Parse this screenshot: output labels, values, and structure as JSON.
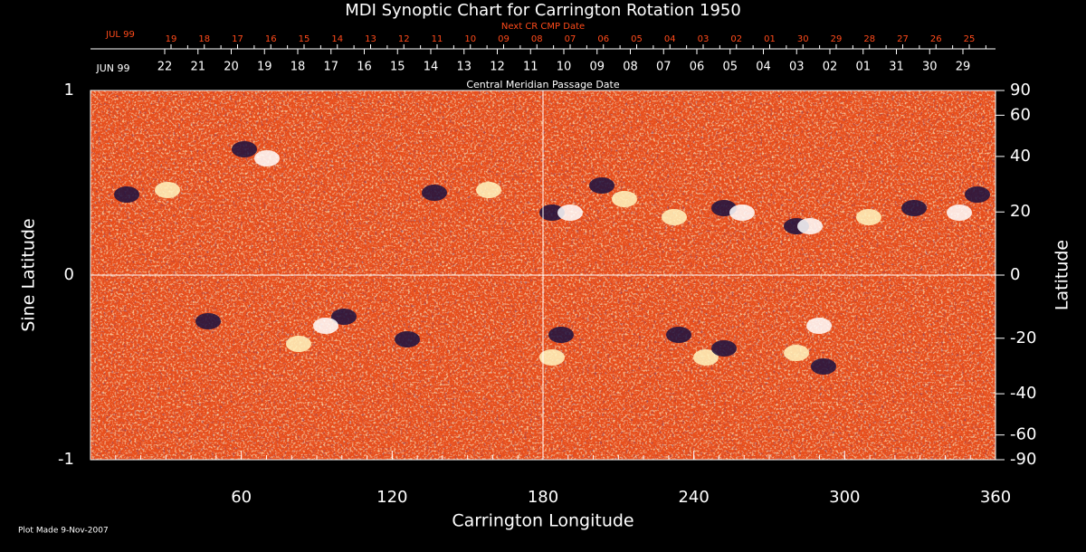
{
  "chart_data": {
    "type": "synoptic-map",
    "title": "MDI Synoptic Chart for Carrington Rotation 1950",
    "x_label": "Carrington Longitude",
    "y_label": "Sine Latitude",
    "y2_label": "Latitude",
    "xlim": [
      0,
      360
    ],
    "xticks": [
      60,
      120,
      180,
      240,
      300,
      360
    ],
    "ylim": [
      -1,
      1
    ],
    "yticks": [
      -1,
      0,
      1
    ],
    "y2lim": [
      -90,
      90
    ],
    "y2scale": "sine",
    "y2ticks": [
      90,
      60,
      40,
      20,
      0,
      -20,
      -40,
      -60,
      -90
    ],
    "top_axis_title": "Next CR CMP Date",
    "top_axis_start": "JUL 99",
    "top_axis_labels": [
      "19",
      "18",
      "17",
      "16",
      "15",
      "14",
      "13",
      "12",
      "11",
      "10",
      "09",
      "08",
      "07",
      "06",
      "05",
      "04",
      "03",
      "02",
      "01",
      "30",
      "29",
      "28",
      "27",
      "26",
      "25"
    ],
    "date_axis_title": "Central Meridian Passage Date",
    "date_axis_start": "JUN 99",
    "date_axis_labels": [
      "22",
      "21",
      "20",
      "19",
      "18",
      "17",
      "16",
      "15",
      "14",
      "13",
      "12",
      "11",
      "10",
      "09",
      "08",
      "07",
      "06",
      "05",
      "04",
      "03",
      "02",
      "01",
      "31",
      "30",
      "29"
    ],
    "footnote": "Plot Made  9-Nov-2007",
    "top_color": "#ff4a1a",
    "map_color": "#e8501a"
  }
}
